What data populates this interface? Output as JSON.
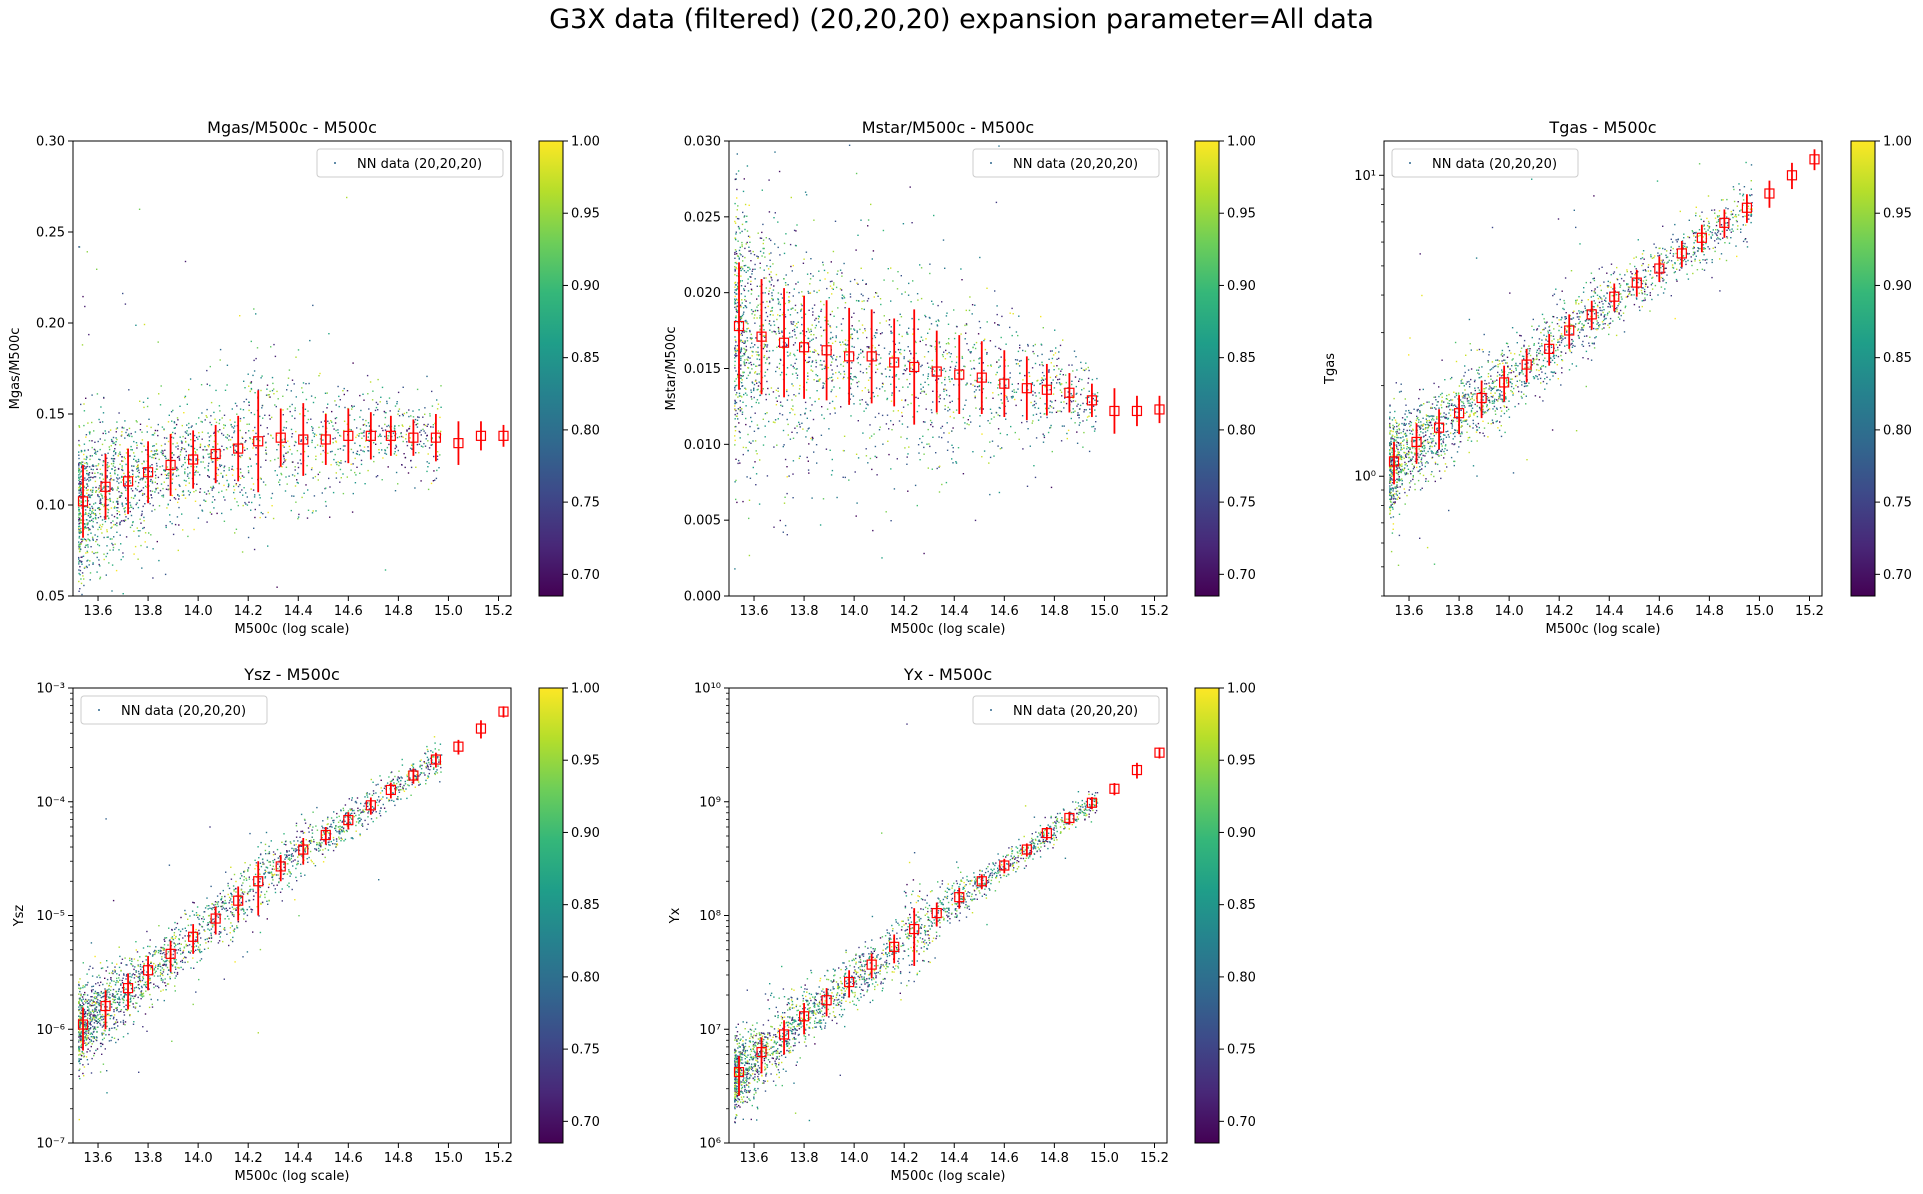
{
  "figure": {
    "suptitle": "G3X data (filtered) (20,20,20) expansion parameter=All data",
    "colormap": [
      "#440154",
      "#482878",
      "#3e4989",
      "#31688e",
      "#26828e",
      "#1f9e89",
      "#35b779",
      "#6ece58",
      "#b5de2b",
      "#fde725"
    ],
    "marker_color": "#ff0000",
    "colorbar": {
      "min": 0.685,
      "max": 1.0,
      "ticks": [
        0.7,
        0.75,
        0.8,
        0.85,
        0.9,
        0.95,
        1.0
      ],
      "tick_labels": [
        "0.70",
        "0.75",
        "0.80",
        "0.85",
        "0.90",
        "0.95",
        "1.00"
      ]
    }
  },
  "chart_data": [
    {
      "type": "scatter",
      "title": "Mgas/M500c - M500c",
      "xlabel": "M500c (log scale)",
      "ylabel": "Mgas/M500c",
      "legend": "NN data (20,20,20)",
      "legend_placement": "top-right",
      "xlim": [
        13.5,
        15.25
      ],
      "ylim": [
        0.05,
        0.3
      ],
      "yscale": "linear",
      "xticks": [
        13.6,
        13.8,
        14.0,
        14.2,
        14.4,
        14.6,
        14.8,
        15.0,
        15.2
      ],
      "xtick_labels": [
        "13.6",
        "13.8",
        "14.0",
        "14.2",
        "14.4",
        "14.6",
        "14.8",
        "15.0",
        "15.2"
      ],
      "yticks": [
        0.05,
        0.1,
        0.15,
        0.2,
        0.25,
        0.3
      ],
      "ytick_labels": [
        "0.05",
        "0.10",
        "0.15",
        "0.20",
        "0.25",
        "0.30"
      ],
      "scatter_trend": {
        "slope": 0.012,
        "intercept_at_13_5": 0.105,
        "sigma": 0.018,
        "floor": 0.115
      },
      "binned": {
        "x": [
          13.54,
          13.63,
          13.72,
          13.8,
          13.89,
          13.98,
          14.07,
          14.16,
          14.24,
          14.33,
          14.42,
          14.51,
          14.6,
          14.69,
          14.77,
          14.86,
          14.95,
          15.04,
          15.13,
          15.22
        ],
        "y": [
          0.102,
          0.11,
          0.113,
          0.118,
          0.122,
          0.125,
          0.128,
          0.131,
          0.135,
          0.137,
          0.136,
          0.136,
          0.138,
          0.138,
          0.138,
          0.137,
          0.137,
          0.134,
          0.138,
          0.138
        ],
        "err": [
          0.02,
          0.018,
          0.018,
          0.017,
          0.017,
          0.016,
          0.016,
          0.018,
          0.028,
          0.016,
          0.02,
          0.014,
          0.015,
          0.013,
          0.011,
          0.01,
          0.013,
          0.012,
          0.008,
          0.006
        ]
      }
    },
    {
      "type": "scatter",
      "title": "Mstar/M500c - M500c",
      "xlabel": "M500c (log scale)",
      "ylabel": "Mstar/M500c",
      "legend": "NN data (20,20,20)",
      "legend_placement": "top-right",
      "xlim": [
        13.5,
        15.25
      ],
      "ylim": [
        0.0,
        0.03
      ],
      "yscale": "linear",
      "xticks": [
        13.6,
        13.8,
        14.0,
        14.2,
        14.4,
        14.6,
        14.8,
        15.0,
        15.2
      ],
      "xtick_labels": [
        "13.6",
        "13.8",
        "14.0",
        "14.2",
        "14.4",
        "14.6",
        "14.8",
        "15.0",
        "15.2"
      ],
      "yticks": [
        0.0,
        0.005,
        0.01,
        0.015,
        0.02,
        0.025,
        0.03
      ],
      "ytick_labels": [
        "0.000",
        "0.005",
        "0.010",
        "0.015",
        "0.020",
        "0.025",
        "0.030"
      ],
      "binned": {
        "x": [
          13.54,
          13.63,
          13.72,
          13.8,
          13.89,
          13.98,
          14.07,
          14.16,
          14.24,
          14.33,
          14.42,
          14.51,
          14.6,
          14.69,
          14.77,
          14.86,
          14.95,
          15.04,
          15.13,
          15.22
        ],
        "y": [
          0.0178,
          0.0171,
          0.0167,
          0.0164,
          0.0162,
          0.0158,
          0.0158,
          0.0154,
          0.0151,
          0.0148,
          0.0146,
          0.0144,
          0.014,
          0.0137,
          0.0136,
          0.0134,
          0.0129,
          0.0122,
          0.0122,
          0.0123
        ],
        "err": [
          0.0042,
          0.0038,
          0.0036,
          0.0034,
          0.0033,
          0.0032,
          0.0031,
          0.0029,
          0.0038,
          0.0027,
          0.0026,
          0.0024,
          0.0022,
          0.0021,
          0.0017,
          0.0013,
          0.0011,
          0.0015,
          0.001,
          0.0009
        ]
      }
    },
    {
      "type": "scatter",
      "title": "Tgas - M500c",
      "xlabel": "M500c (log scale)",
      "ylabel": "Tgas",
      "legend": "NN data (20,20,20)",
      "legend_placement": "top-left",
      "xlim": [
        13.5,
        15.25
      ],
      "ylim": [
        0.4,
        13.0
      ],
      "yscale": "log",
      "xticks": [
        13.6,
        13.8,
        14.0,
        14.2,
        14.4,
        14.6,
        14.8,
        15.0,
        15.2
      ],
      "xtick_labels": [
        "13.6",
        "13.8",
        "14.0",
        "14.2",
        "14.4",
        "14.6",
        "14.8",
        "15.0",
        "15.2"
      ],
      "yticks": [
        1,
        10
      ],
      "ytick_labels": [
        "10⁰",
        "10¹"
      ],
      "binned": {
        "x": [
          13.54,
          13.63,
          13.72,
          13.8,
          13.89,
          13.98,
          14.07,
          14.16,
          14.24,
          14.33,
          14.42,
          14.51,
          14.6,
          14.69,
          14.77,
          14.86,
          14.95,
          15.04,
          15.13,
          15.22
        ],
        "y": [
          1.12,
          1.3,
          1.45,
          1.62,
          1.82,
          2.05,
          2.35,
          2.65,
          3.05,
          3.45,
          3.95,
          4.4,
          4.9,
          5.5,
          6.2,
          6.95,
          7.8,
          8.7,
          10.0,
          11.3
        ],
        "err": [
          0.18,
          0.2,
          0.22,
          0.24,
          0.26,
          0.28,
          0.3,
          0.32,
          0.4,
          0.38,
          0.42,
          0.45,
          0.48,
          0.55,
          0.65,
          0.75,
          0.85,
          0.9,
          1.0,
          0.9
        ]
      }
    },
    {
      "type": "scatter",
      "title": "Ysz - M500c",
      "xlabel": "M500c (log scale)",
      "ylabel": "Ysz",
      "legend": "NN data (20,20,20)",
      "legend_placement": "top-left",
      "xlim": [
        13.5,
        15.25
      ],
      "ylim": [
        1e-07,
        0.001
      ],
      "yscale": "log",
      "xticks": [
        13.6,
        13.8,
        14.0,
        14.2,
        14.4,
        14.6,
        14.8,
        15.0,
        15.2
      ],
      "xtick_labels": [
        "13.6",
        "13.8",
        "14.0",
        "14.2",
        "14.4",
        "14.6",
        "14.8",
        "15.0",
        "15.2"
      ],
      "yticks": [
        1e-07,
        1e-06,
        1e-05,
        0.0001,
        0.001
      ],
      "ytick_labels": [
        "10⁻⁷",
        "10⁻⁶",
        "10⁻⁵",
        "10⁻⁴",
        "10⁻³"
      ],
      "binned": {
        "x": [
          13.54,
          13.63,
          13.72,
          13.8,
          13.89,
          13.98,
          14.07,
          14.16,
          14.24,
          14.33,
          14.42,
          14.51,
          14.6,
          14.69,
          14.77,
          14.86,
          14.95,
          15.04,
          15.13,
          15.22
        ],
        "y": [
          1.1e-06,
          1.6e-06,
          2.3e-06,
          3.3e-06,
          4.6e-06,
          6.5e-06,
          9.4e-06,
          1.35e-05,
          2e-05,
          2.7e-05,
          3.8e-05,
          5.1e-05,
          6.9e-05,
          9.3e-05,
          0.000127,
          0.00017,
          0.000235,
          0.000305,
          0.00044,
          0.00062
        ],
        "err": [
          4.5e-07,
          6e-07,
          8e-07,
          1.1e-06,
          1.4e-06,
          1.9e-06,
          2.6e-06,
          4.5e-06,
          1e-05,
          7e-06,
          1e-05,
          9e-06,
          1.2e-05,
          1.6e-05,
          2e-05,
          2.6e-05,
          3.5e-05,
          4.5e-05,
          8e-05,
          7e-05
        ]
      }
    },
    {
      "type": "scatter",
      "title": "Yx - M500c",
      "xlabel": "M500c (log scale)",
      "ylabel": "Yx",
      "legend": "NN data (20,20,20)",
      "legend_placement": "top-right",
      "xlim": [
        13.5,
        15.25
      ],
      "ylim": [
        1000000.0,
        10000000000.0
      ],
      "yscale": "log",
      "xticks": [
        13.6,
        13.8,
        14.0,
        14.2,
        14.4,
        14.6,
        14.8,
        15.0,
        15.2
      ],
      "xtick_labels": [
        "13.6",
        "13.8",
        "14.0",
        "14.2",
        "14.4",
        "14.6",
        "14.8",
        "15.0",
        "15.2"
      ],
      "yticks": [
        1000000.0,
        10000000.0,
        100000000.0,
        1000000000.0,
        10000000000.0
      ],
      "ytick_labels": [
        "10⁶",
        "10⁷",
        "10⁸",
        "10⁹",
        "10¹⁰"
      ],
      "binned": {
        "x": [
          13.54,
          13.63,
          13.72,
          13.8,
          13.89,
          13.98,
          14.07,
          14.16,
          14.24,
          14.33,
          14.42,
          14.51,
          14.6,
          14.69,
          14.77,
          14.86,
          14.95,
          15.04,
          15.13,
          15.22
        ],
        "y": [
          4200000.0,
          6300000.0,
          9000000.0,
          13000000.0,
          18000000.0,
          26000000.0,
          37000000.0,
          53000000.0,
          76000000.0,
          105000000.0,
          145000000.0,
          200000000.0,
          275000000.0,
          380000000.0,
          530000000.0,
          720000000.0,
          980000000.0,
          1300000000.0,
          1900000000.0,
          2700000000.0
        ],
        "err": [
          1600000.0,
          2200000.0,
          3000000.0,
          4000000.0,
          5000000.0,
          7000000.0,
          9000000.0,
          15000000.0,
          40000000.0,
          25000000.0,
          30000000.0,
          30000000.0,
          40000000.0,
          50000000.0,
          70000000.0,
          90000000.0,
          120000000.0,
          160000000.0,
          300000000.0,
          300000000.0
        ]
      }
    }
  ]
}
